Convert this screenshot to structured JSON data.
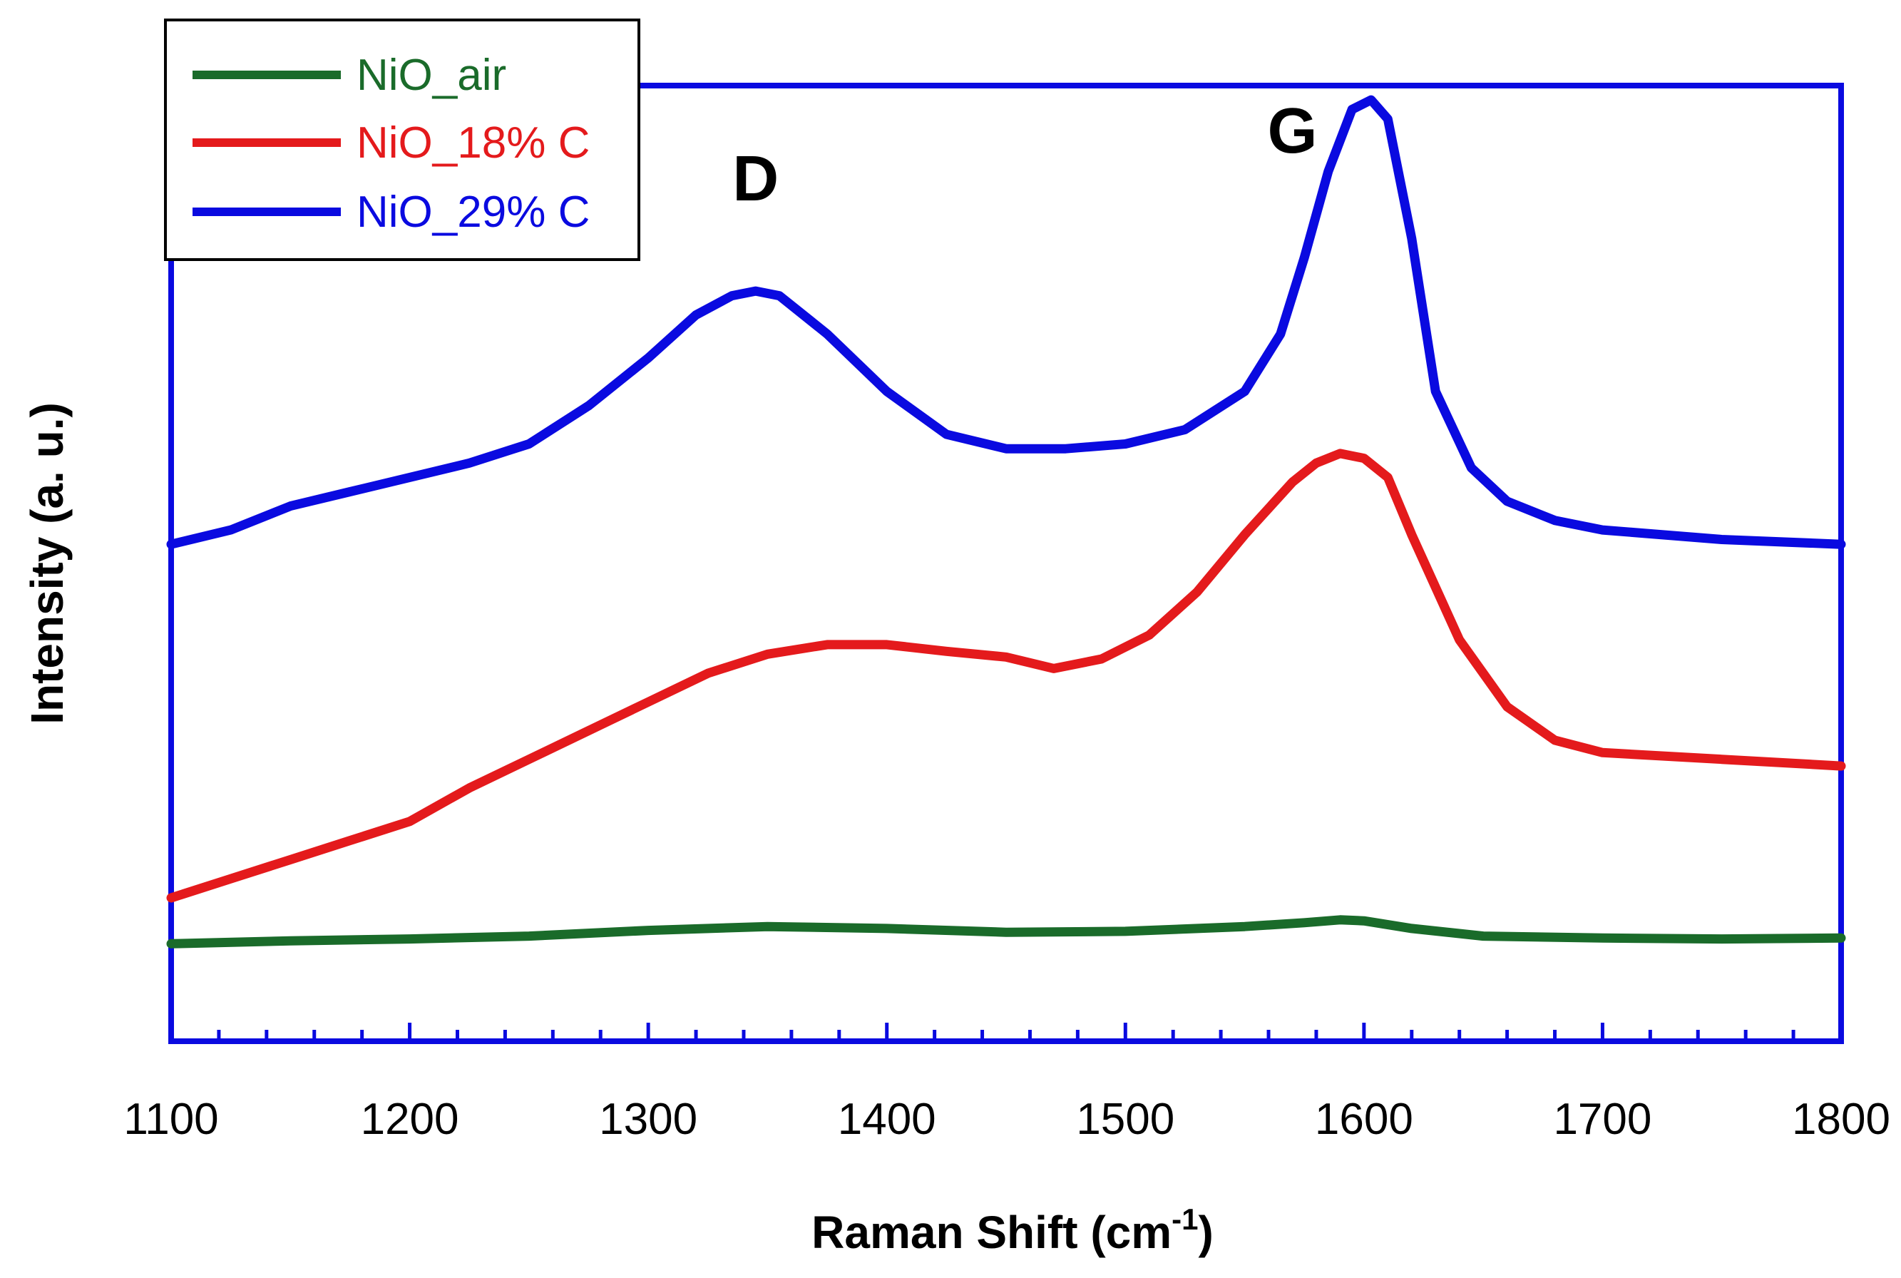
{
  "chart_data": {
    "type": "line",
    "title": "",
    "xlabel": "Raman Shift (cm",
    "xlabel_sup": "-1",
    "xlabel_suffix": ")",
    "ylabel": "Intensity (a. u.)",
    "xlim": [
      1100,
      1800
    ],
    "ylim": [
      0,
      100
    ],
    "y_ticks_shown": false,
    "grid": false,
    "legend_position": "top-left",
    "xticks": [
      "1100",
      "1200",
      "1300",
      "1400",
      "1500",
      "1600",
      "1700",
      "1800"
    ],
    "minor_tick_step": 20,
    "annotations": [
      {
        "text": "D",
        "x": 1345,
        "y": 88
      },
      {
        "text": "G",
        "x": 1570,
        "y": 93
      }
    ],
    "series": [
      {
        "name": "NiO_air",
        "color": "#1a6b2a",
        "x": [
          1100,
          1150,
          1200,
          1250,
          1300,
          1350,
          1400,
          1450,
          1500,
          1550,
          1575,
          1590,
          1600,
          1620,
          1650,
          1700,
          1750,
          1800
        ],
        "y": [
          10.2,
          10.5,
          10.7,
          11.0,
          11.6,
          12.0,
          11.8,
          11.4,
          11.5,
          12.0,
          12.4,
          12.7,
          12.6,
          11.8,
          11.0,
          10.8,
          10.7,
          10.8
        ]
      },
      {
        "name": "NiO_18% C",
        "color": "#e41a1c",
        "x": [
          1100,
          1125,
          1150,
          1175,
          1200,
          1225,
          1250,
          1275,
          1300,
          1325,
          1350,
          1375,
          1400,
          1425,
          1450,
          1470,
          1490,
          1510,
          1530,
          1550,
          1570,
          1580,
          1590,
          1600,
          1610,
          1620,
          1640,
          1660,
          1680,
          1700,
          1750,
          1800
        ],
        "y": [
          15.0,
          17.0,
          19.0,
          21.0,
          23.0,
          26.5,
          29.5,
          32.5,
          35.5,
          38.5,
          40.5,
          41.5,
          41.5,
          40.8,
          40.2,
          39.0,
          40.0,
          42.5,
          47.0,
          53.0,
          58.5,
          60.5,
          61.5,
          61.0,
          59.0,
          53.0,
          42.0,
          35.0,
          31.5,
          30.2,
          29.5,
          28.8
        ]
      },
      {
        "name": "NiO_29% C",
        "color": "#0a0ae0",
        "x": [
          1100,
          1125,
          1150,
          1175,
          1200,
          1225,
          1250,
          1275,
          1300,
          1320,
          1335,
          1345,
          1355,
          1375,
          1400,
          1425,
          1450,
          1475,
          1500,
          1525,
          1550,
          1565,
          1575,
          1585,
          1595,
          1603,
          1610,
          1620,
          1630,
          1645,
          1660,
          1680,
          1700,
          1750,
          1800
        ],
        "y": [
          52.0,
          53.5,
          56.0,
          57.5,
          59.0,
          60.5,
          62.5,
          66.5,
          71.5,
          76.0,
          78.0,
          78.5,
          78.0,
          74.0,
          68.0,
          63.5,
          62.0,
          62.0,
          62.5,
          64.0,
          68.0,
          74.0,
          82.0,
          91.0,
          97.5,
          98.5,
          96.5,
          84.0,
          68.0,
          60.0,
          56.5,
          54.5,
          53.5,
          52.5,
          52.0
        ]
      }
    ]
  }
}
